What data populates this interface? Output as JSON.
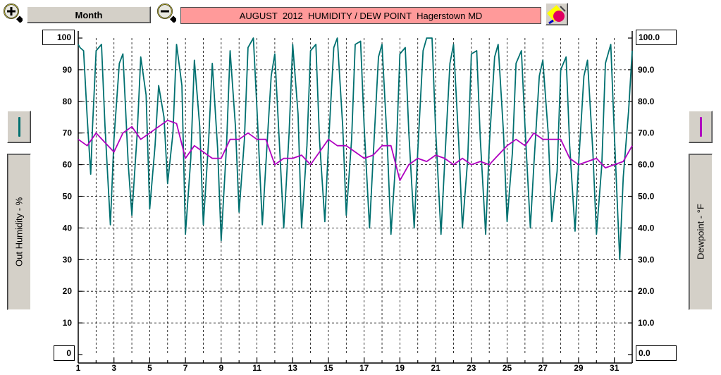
{
  "toolbar": {
    "range_label": "Month",
    "title": "AUGUST  2012  HUMIDITY / DEW POINT  Hagerstown MD",
    "zoom_in_icon": "zoom-in-icon",
    "zoom_out_icon": "zoom-out-icon",
    "color_icon": "color-picker-icon"
  },
  "left_panel": {
    "label": "Out Humidity - %"
  },
  "right_panel": {
    "label": "Dewpoint - °F"
  },
  "y_left": {
    "max_label": "100",
    "min_label": "0"
  },
  "y_right": {
    "max_label": "100.0",
    "min_label": "0.0"
  },
  "colors": {
    "humidity": "#007070",
    "dewpoint": "#b000c0",
    "title_bg": "#ff9a9a",
    "panel": "#d4d0c8"
  },
  "chart_data": {
    "type": "line",
    "title": "AUGUST  2012  HUMIDITY / DEW POINT  Hagerstown MD",
    "xlabel": "",
    "ylabel_left": "Out Humidity - %",
    "ylabel_right": "Dewpoint - °F",
    "x_range": [
      1,
      32
    ],
    "ylim_left": [
      0,
      100
    ],
    "ylim_right": [
      0,
      100
    ],
    "x_ticks": [
      "1",
      "3",
      "5",
      "7",
      "9",
      "11",
      "13",
      "15",
      "17",
      "19",
      "21",
      "23",
      "25",
      "27",
      "29",
      "31"
    ],
    "y_ticks_left": [
      "90",
      "80",
      "70",
      "60",
      "50",
      "40",
      "30",
      "20",
      "10"
    ],
    "y_ticks_right": [
      "90.0",
      "80.0",
      "70.0",
      "60.0",
      "50.0",
      "40.0",
      "30.0",
      "20.0",
      "10.0"
    ],
    "grid": true,
    "series": [
      {
        "name": "Out Humidity - %",
        "axis": "left",
        "x": [
          1.0,
          1.1,
          1.3,
          1.5,
          1.7,
          1.8,
          2.0,
          2.3,
          2.5,
          2.8,
          3.0,
          3.3,
          3.5,
          3.8,
          4.0,
          4.3,
          4.5,
          4.8,
          5.0,
          5.3,
          5.5,
          5.8,
          6.0,
          6.3,
          6.5,
          6.8,
          7.0,
          7.3,
          7.5,
          7.8,
          8.0,
          8.3,
          8.5,
          8.8,
          9.0,
          9.3,
          9.5,
          9.8,
          10.0,
          10.3,
          10.5,
          10.8,
          11.0,
          11.3,
          11.5,
          11.8,
          12.0,
          12.3,
          12.5,
          12.8,
          13.0,
          13.3,
          13.5,
          13.8,
          14.0,
          14.3,
          14.5,
          14.8,
          15.0,
          15.3,
          15.5,
          15.8,
          16.0,
          16.3,
          16.5,
          16.8,
          17.0,
          17.3,
          17.5,
          17.8,
          18.0,
          18.3,
          18.5,
          18.8,
          19.0,
          19.3,
          19.5,
          19.8,
          20.0,
          20.3,
          20.5,
          20.8,
          21.0,
          21.3,
          21.5,
          21.8,
          22.0,
          22.3,
          22.5,
          22.8,
          23.0,
          23.3,
          23.5,
          23.8,
          24.0,
          24.3,
          24.5,
          24.8,
          25.0,
          25.3,
          25.5,
          25.8,
          26.0,
          26.3,
          26.5,
          26.8,
          27.0,
          27.3,
          27.5,
          27.8,
          28.0,
          28.3,
          28.5,
          28.8,
          29.0,
          29.3,
          29.5,
          29.8,
          30.0,
          30.3,
          30.5,
          30.8,
          31.0,
          31.3,
          31.5,
          31.8,
          32.0
        ],
        "y": [
          98,
          97,
          96,
          75,
          57,
          72,
          96,
          98,
          72,
          41,
          68,
          92,
          95,
          60,
          44,
          70,
          94,
          82,
          46,
          66,
          85,
          75,
          54,
          70,
          98,
          85,
          38,
          62,
          93,
          72,
          41,
          68,
          92,
          65,
          36,
          66,
          96,
          72,
          45,
          68,
          97,
          100,
          78,
          41,
          60,
          88,
          95,
          62,
          40,
          70,
          98,
          76,
          40,
          66,
          96,
          98,
          68,
          42,
          66,
          97,
          100,
          72,
          44,
          68,
          98,
          99,
          72,
          40,
          62,
          94,
          98,
          66,
          38,
          64,
          95,
          97,
          70,
          40,
          64,
          96,
          100,
          100,
          71,
          38,
          60,
          92,
          98,
          66,
          40,
          62,
          95,
          96,
          68,
          38,
          66,
          94,
          98,
          70,
          42,
          64,
          92,
          96,
          72,
          40,
          60,
          88,
          93,
          70,
          42,
          58,
          90,
          94,
          66,
          39,
          60,
          88,
          93,
          64,
          38,
          60,
          92,
          98,
          70,
          30,
          56,
          77,
          96
        ]
      },
      {
        "name": "Dewpoint - °F",
        "axis": "right",
        "x": [
          1.0,
          1.5,
          2.0,
          2.5,
          3.0,
          3.5,
          4.0,
          4.5,
          5.0,
          5.5,
          6.0,
          6.5,
          7.0,
          7.5,
          8.0,
          8.5,
          9.0,
          9.5,
          10.0,
          10.5,
          11.0,
          11.5,
          12.0,
          12.5,
          13.0,
          13.5,
          14.0,
          14.5,
          15.0,
          15.5,
          16.0,
          16.5,
          17.0,
          17.5,
          18.0,
          18.5,
          19.0,
          19.5,
          20.0,
          20.5,
          21.0,
          21.5,
          22.0,
          22.5,
          23.0,
          23.5,
          24.0,
          24.5,
          25.0,
          25.5,
          26.0,
          26.5,
          27.0,
          27.5,
          28.0,
          28.5,
          29.0,
          29.5,
          30.0,
          30.5,
          31.0,
          31.5,
          32.0
        ],
        "y": [
          68,
          66,
          70,
          67,
          64,
          70,
          72,
          68,
          70,
          72,
          74,
          73,
          62,
          66,
          64,
          62,
          62,
          68,
          68,
          70,
          68,
          68,
          60,
          62,
          62,
          63,
          60,
          64,
          68,
          66,
          66,
          64,
          62,
          63,
          66,
          66,
          55,
          60,
          62,
          61,
          63,
          62,
          60,
          62,
          60,
          61,
          60,
          63,
          66,
          68,
          66,
          70,
          68,
          68,
          68,
          62,
          60,
          61,
          62,
          59,
          60,
          61,
          66
        ]
      }
    ]
  }
}
